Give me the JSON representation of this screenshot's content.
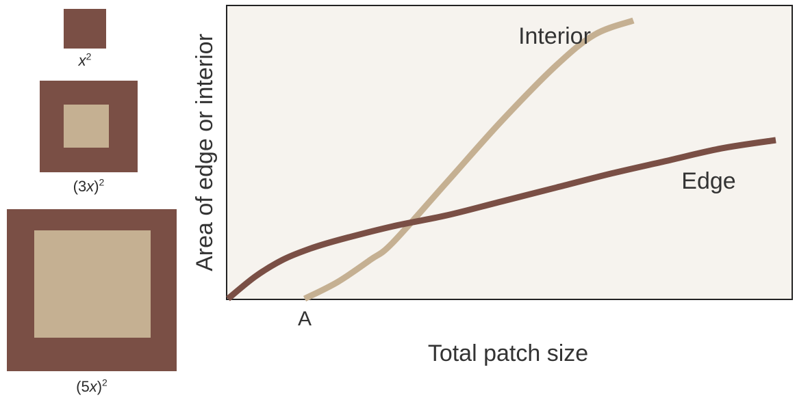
{
  "squares": [
    {
      "label_open": "",
      "label_var": "x",
      "label_close": "",
      "label_exp": "2",
      "size_multiple": 1
    },
    {
      "label_open": "(3",
      "label_var": "x",
      "label_close": ")",
      "label_exp": "2",
      "size_multiple": 3
    },
    {
      "label_open": "(5",
      "label_var": "x",
      "label_close": ")",
      "label_exp": "2",
      "size_multiple": 5
    }
  ],
  "colors": {
    "edge": "#7a4f45",
    "interior": "#c5b092",
    "plot_background": "#f6f3ee",
    "frame": "#222222"
  },
  "chart_data": {
    "type": "line",
    "xlabel": "Total patch size",
    "ylabel": "Area of edge or interior",
    "xlim": [
      0,
      100
    ],
    "ylim": [
      0,
      100
    ],
    "grid": false,
    "x_annotation": {
      "label": "A",
      "x": 14
    },
    "series": [
      {
        "name": "Interior",
        "color": "#c5b092",
        "points": [
          [
            14,
            0
          ],
          [
            20,
            6
          ],
          [
            26,
            14
          ],
          [
            30,
            20
          ],
          [
            40,
            42
          ],
          [
            50,
            64
          ],
          [
            60,
            84
          ],
          [
            67,
            95
          ],
          [
            74,
            100
          ]
        ]
      },
      {
        "name": "Edge",
        "color": "#7a4f45",
        "points": [
          [
            0,
            0
          ],
          [
            5,
            8
          ],
          [
            10,
            14
          ],
          [
            15,
            18
          ],
          [
            20,
            21
          ],
          [
            30,
            26
          ],
          [
            40,
            30
          ],
          [
            50,
            35
          ],
          [
            60,
            40
          ],
          [
            70,
            45
          ],
          [
            80,
            49.5
          ],
          [
            90,
            54
          ],
          [
            100,
            57
          ]
        ]
      }
    ]
  }
}
